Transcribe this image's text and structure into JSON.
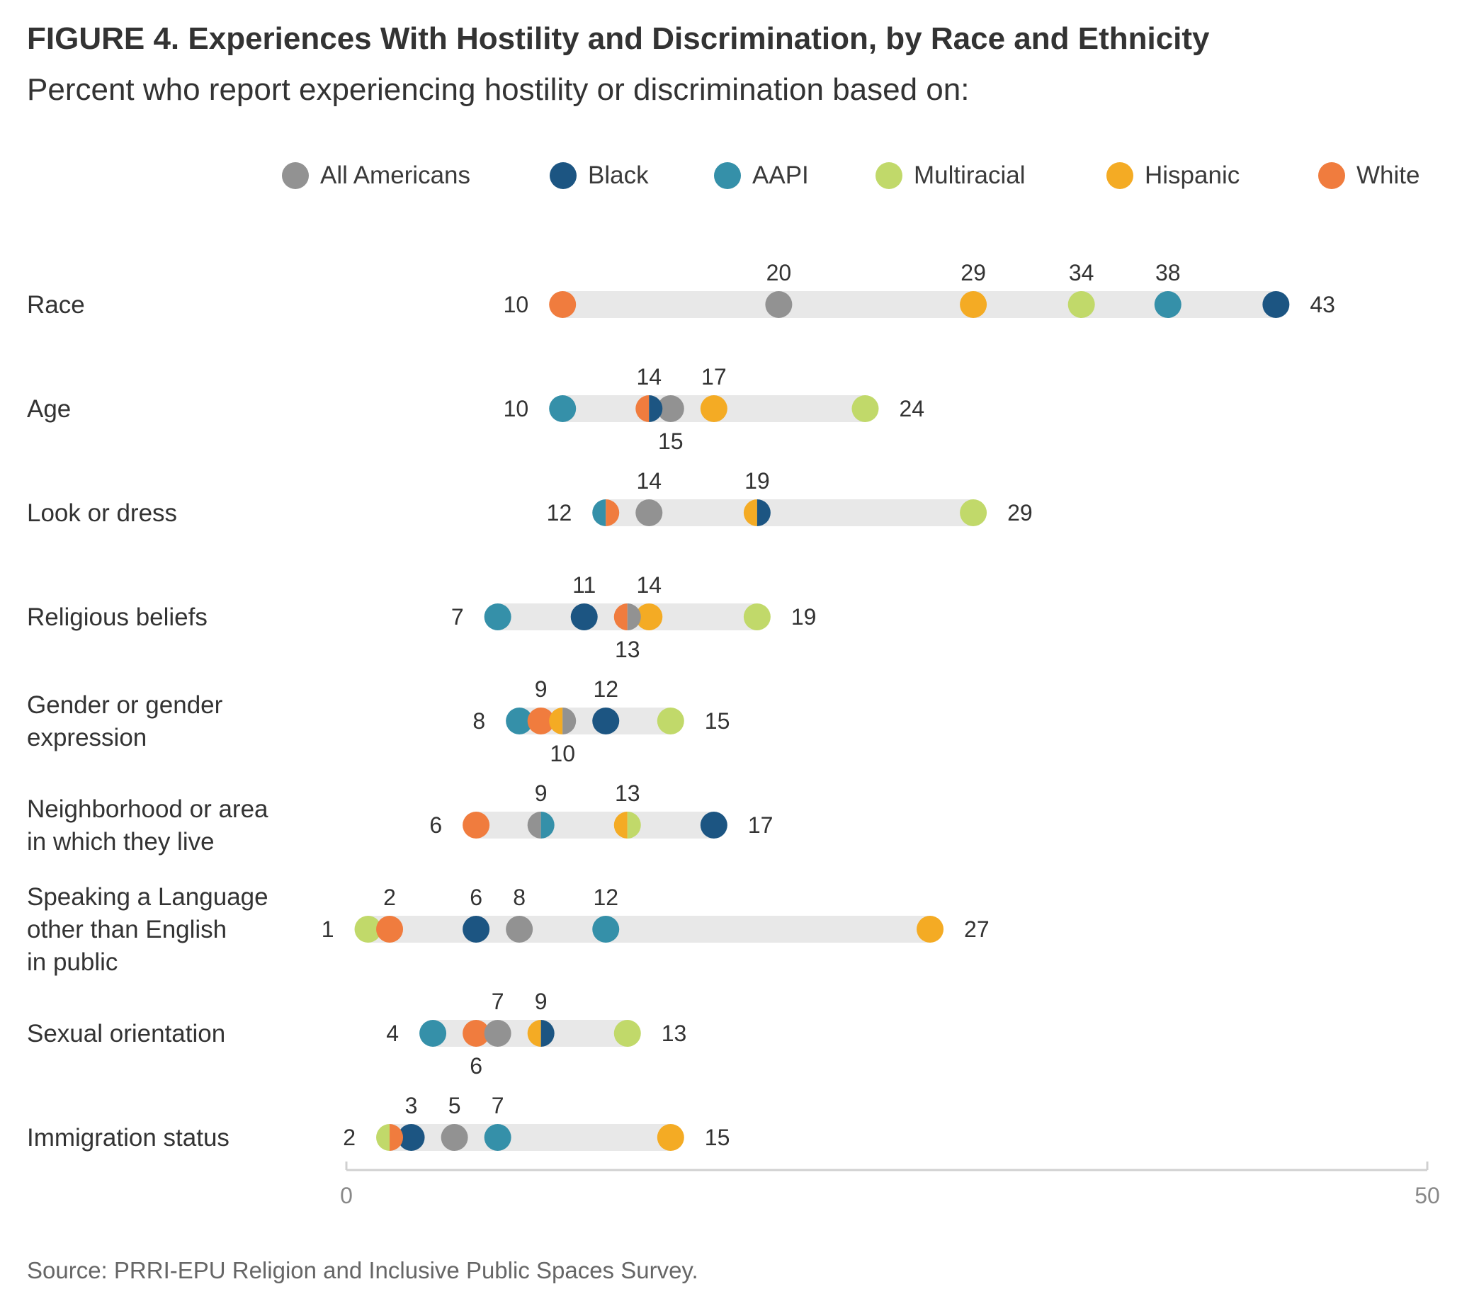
{
  "header": {
    "title": "FIGURE 4. Experiences With Hostility and Discrimination, by Race and Ethnicity",
    "subtitle": "Percent who report experiencing hostility or discrimination based on:"
  },
  "footer": {
    "source": "Source: PRRI-EPU Religion and Inclusive Public Spaces Survey."
  },
  "colors": {
    "All Americans": "#929292",
    "Black": "#1c5582",
    "AAPI": "#3590a9",
    "Multiracial": "#c1d96a",
    "Hispanic": "#f4ab24",
    "White": "#f07c3e",
    "track": "#e8e8e8",
    "axis": "#d0d0d0"
  },
  "chart_data": {
    "type": "dot",
    "title": "FIGURE 4. Experiences With Hostility and Discrimination, by Race and Ethnicity",
    "subtitle": "Percent who report experiencing hostility or discrimination based on:",
    "xlim": [
      0,
      50
    ],
    "x_ticks": [
      "0",
      "50"
    ],
    "legend": [
      "All Americans",
      "Black",
      "AAPI",
      "Multiracial",
      "Hispanic",
      "White"
    ],
    "legend_position": "top",
    "grid": false,
    "rows": [
      {
        "label_lines": [
          "Race"
        ],
        "values": {
          "White": 10,
          "All Americans": 20,
          "Hispanic": 29,
          "Multiracial": 34,
          "AAPI": 38,
          "Black": 43
        },
        "labels": [
          {
            "text": "10",
            "pos": "left"
          },
          {
            "text": "20",
            "pos": "above",
            "x": 20
          },
          {
            "text": "29",
            "pos": "above",
            "x": 29
          },
          {
            "text": "34",
            "pos": "above",
            "x": 34
          },
          {
            "text": "38",
            "pos": "above",
            "x": 38
          },
          {
            "text": "43",
            "pos": "right"
          }
        ]
      },
      {
        "label_lines": [
          "Age"
        ],
        "values": {
          "AAPI": 10,
          "White": 14,
          "Black": 14,
          "All Americans": 15,
          "Hispanic": 17,
          "Multiracial": 24
        },
        "split": [
          [
            "White",
            "Black"
          ]
        ],
        "labels": [
          {
            "text": "10",
            "pos": "left"
          },
          {
            "text": "14",
            "pos": "above",
            "x": 14
          },
          {
            "text": "17",
            "pos": "above",
            "x": 17
          },
          {
            "text": "15",
            "pos": "below",
            "x": 15
          },
          {
            "text": "24",
            "pos": "right"
          }
        ]
      },
      {
        "label_lines": [
          "Look or dress"
        ],
        "values": {
          "AAPI": 12,
          "White": 12,
          "All Americans": 14,
          "Hispanic": 19,
          "Black": 19,
          "Multiracial": 29
        },
        "split": [
          [
            "AAPI",
            "White"
          ],
          [
            "Hispanic",
            "Black"
          ]
        ],
        "labels": [
          {
            "text": "12",
            "pos": "left"
          },
          {
            "text": "14",
            "pos": "above",
            "x": 14
          },
          {
            "text": "19",
            "pos": "above",
            "x": 19
          },
          {
            "text": "29",
            "pos": "right"
          }
        ]
      },
      {
        "label_lines": [
          "Religious beliefs"
        ],
        "values": {
          "AAPI": 7,
          "Black": 11,
          "White": 13,
          "All Americans": 13,
          "Hispanic": 14,
          "Multiracial": 19
        },
        "split": [
          [
            "White",
            "All Americans"
          ]
        ],
        "labels": [
          {
            "text": "7",
            "pos": "left"
          },
          {
            "text": "11",
            "pos": "above",
            "x": 11
          },
          {
            "text": "14",
            "pos": "above",
            "x": 14
          },
          {
            "text": "13",
            "pos": "below",
            "x": 13
          },
          {
            "text": "19",
            "pos": "right"
          }
        ]
      },
      {
        "label_lines": [
          "Gender or gender",
          "expression"
        ],
        "values": {
          "AAPI": 8,
          "White": 9,
          "Hispanic": 10,
          "All Americans": 10,
          "Black": 12,
          "Multiracial": 15
        },
        "split": [
          [
            "Hispanic",
            "All Americans"
          ]
        ],
        "labels": [
          {
            "text": "8",
            "pos": "left"
          },
          {
            "text": "9",
            "pos": "above",
            "x": 9
          },
          {
            "text": "12",
            "pos": "above",
            "x": 12
          },
          {
            "text": "10",
            "pos": "below",
            "x": 10
          },
          {
            "text": "15",
            "pos": "right"
          }
        ]
      },
      {
        "label_lines": [
          "Neighborhood or area",
          "in which they live"
        ],
        "values": {
          "White": 6,
          "All Americans": 9,
          "AAPI": 9,
          "Hispanic": 13,
          "Multiracial": 13,
          "Black": 17
        },
        "split": [
          [
            "All Americans",
            "AAPI"
          ],
          [
            "Hispanic",
            "Multiracial"
          ]
        ],
        "labels": [
          {
            "text": "6",
            "pos": "left"
          },
          {
            "text": "9",
            "pos": "above",
            "x": 9
          },
          {
            "text": "13",
            "pos": "above",
            "x": 13
          },
          {
            "text": "17",
            "pos": "right"
          }
        ]
      },
      {
        "label_lines": [
          "Speaking a Language",
          "other than English",
          "in public"
        ],
        "values": {
          "Multiracial": 1,
          "White": 2,
          "Black": 6,
          "All Americans": 8,
          "AAPI": 12,
          "Hispanic": 27
        },
        "labels": [
          {
            "text": "1",
            "pos": "left"
          },
          {
            "text": "2",
            "pos": "above",
            "x": 2
          },
          {
            "text": "6",
            "pos": "above",
            "x": 6
          },
          {
            "text": "8",
            "pos": "above",
            "x": 8
          },
          {
            "text": "12",
            "pos": "above",
            "x": 12
          },
          {
            "text": "27",
            "pos": "right"
          }
        ]
      },
      {
        "label_lines": [
          "Sexual orientation"
        ],
        "values": {
          "AAPI": 4,
          "White": 6,
          "All Americans": 7,
          "Hispanic": 9,
          "Black": 9,
          "Multiracial": 13
        },
        "split": [
          [
            "Hispanic",
            "Black"
          ]
        ],
        "labels": [
          {
            "text": "4",
            "pos": "left"
          },
          {
            "text": "7",
            "pos": "above",
            "x": 7
          },
          {
            "text": "9",
            "pos": "above",
            "x": 9
          },
          {
            "text": "6",
            "pos": "below",
            "x": 6
          },
          {
            "text": "13",
            "pos": "right"
          }
        ]
      },
      {
        "label_lines": [
          "Immigration status"
        ],
        "values": {
          "Multiracial": 2,
          "White": 2,
          "Black": 3,
          "All Americans": 5,
          "AAPI": 7,
          "Hispanic": 15
        },
        "split": [
          [
            "Multiracial",
            "White"
          ]
        ],
        "labels": [
          {
            "text": "2",
            "pos": "left"
          },
          {
            "text": "3",
            "pos": "above",
            "x": 3
          },
          {
            "text": "5",
            "pos": "above",
            "x": 5
          },
          {
            "text": "7",
            "pos": "above",
            "x": 7
          },
          {
            "text": "15",
            "pos": "right"
          }
        ]
      }
    ]
  }
}
